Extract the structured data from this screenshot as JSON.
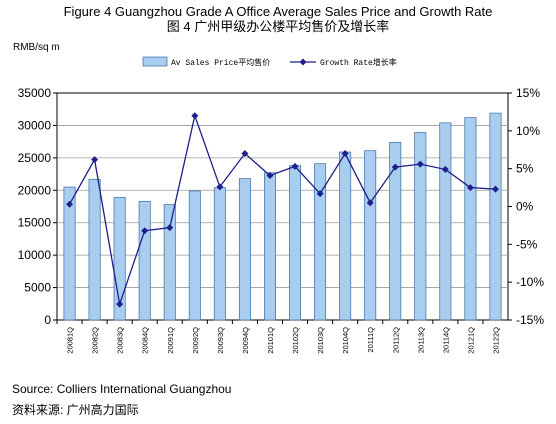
{
  "header": {
    "title_en": "Figure 4 Guangzhou Grade A Office Average  Sales Price and Growth Rate",
    "title_cn": "图 4 广州甲级办公楼平均售价及增长率",
    "unit_left": "RMB/sq m"
  },
  "footer": {
    "source_en": "Source:  Colliers International Guangzhou",
    "source_cn": "资料来源: 广州高力国际"
  },
  "colors": {
    "bar_fill": "#a9cdef",
    "bar_stroke": "#3a6aa0",
    "line": "#1f1f8a",
    "grid": "#9a9a9a"
  },
  "chart_data": {
    "type": "bar",
    "categories": [
      "2008 1Q",
      "2008 2Q",
      "2008 3Q",
      "2008 4Q",
      "2009 1Q",
      "2009 2Q",
      "2009 3Q",
      "2009 4Q",
      "2010 1Q",
      "2010 2Q",
      "2010 3Q",
      "2010 4Q",
      "2011 1Q",
      "2011 2Q",
      "2011 3Q",
      "2011 4Q",
      "2012 1Q",
      "2012 2Q"
    ],
    "series": [
      {
        "name": "Av Sales Price平均售价",
        "type": "bar",
        "axis": "left",
        "values": [
          20500,
          21700,
          18900,
          18300,
          17800,
          19900,
          20400,
          21800,
          22700,
          23800,
          24100,
          25900,
          26100,
          27400,
          28900,
          30400,
          31200,
          31900
        ]
      },
      {
        "name": "Growth Rate增长率",
        "type": "line",
        "axis": "right",
        "values": [
          0.3,
          6.2,
          -12.9,
          -3.2,
          -2.8,
          12.0,
          2.6,
          7.0,
          4.1,
          5.3,
          1.7,
          7.0,
          0.5,
          5.2,
          5.6,
          4.9,
          2.5,
          2.3
        ]
      }
    ],
    "ylim_left": [
      0,
      35000
    ],
    "yticks_left": [
      "35000",
      "30000",
      "25000",
      "20000",
      "15000",
      "10000",
      "5000",
      "0"
    ],
    "ylim_right": [
      -15,
      15
    ],
    "yticks_right": [
      "15%",
      "10%",
      "5%",
      "0%",
      "-5%",
      "-10%",
      "-15%"
    ],
    "ylabel_left": "RMB/sq m",
    "grid": true,
    "legend_position": "top"
  }
}
